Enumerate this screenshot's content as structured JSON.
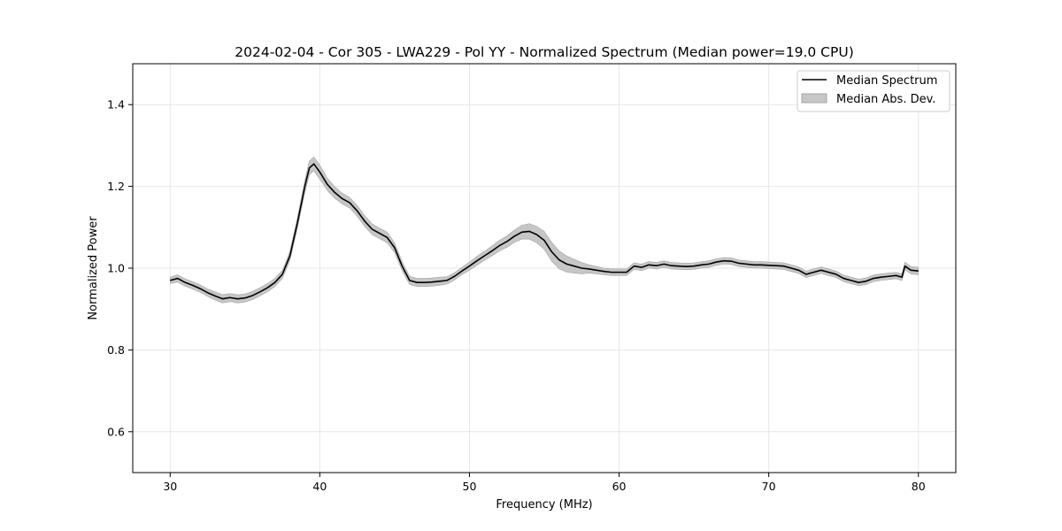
{
  "chart_data": {
    "type": "line",
    "title": "2024-02-04 - Cor 305 - LWA229 - Pol YY - Normalized Spectrum (Median power=19.0 CPU)",
    "xlabel": "Frequency (MHz)",
    "ylabel": "Normalized Power",
    "xlim": [
      27.5,
      82.5
    ],
    "ylim": [
      0.5,
      1.5
    ],
    "x_ticks": [
      30,
      40,
      50,
      60,
      70,
      80
    ],
    "y_ticks": [
      0.6,
      0.8,
      1.0,
      1.2,
      1.4
    ],
    "x_tick_labels": [
      "30",
      "40",
      "50",
      "60",
      "70",
      "80"
    ],
    "y_tick_labels": [
      "0.6",
      "0.8",
      "1.0",
      "1.2",
      "1.4"
    ],
    "grid": true,
    "legend_position": "top-right",
    "colors": {
      "line": "#000000",
      "band": "#c6c6c6",
      "band_edge": "#a5a5a5",
      "grid": "#e6e6e6"
    },
    "series": [
      {
        "name": "Median Spectrum",
        "kind": "line",
        "x": [
          30.0,
          30.5,
          31.0,
          31.5,
          32.0,
          32.5,
          33.0,
          33.5,
          34.0,
          34.5,
          35.0,
          35.5,
          36.0,
          36.5,
          37.0,
          37.5,
          38.0,
          38.5,
          39.0,
          39.3,
          39.6,
          40.0,
          40.5,
          41.0,
          41.5,
          42.0,
          42.5,
          43.0,
          43.5,
          44.0,
          44.5,
          45.0,
          45.5,
          46.0,
          46.5,
          47.0,
          47.5,
          48.0,
          48.5,
          49.0,
          49.5,
          50.0,
          50.5,
          51.0,
          51.5,
          52.0,
          52.5,
          53.0,
          53.5,
          54.0,
          54.5,
          55.0,
          55.5,
          56.0,
          56.5,
          57.0,
          57.5,
          58.0,
          58.5,
          59.0,
          59.5,
          60.0,
          60.5,
          61.0,
          61.5,
          62.0,
          62.5,
          63.0,
          63.5,
          64.0,
          64.5,
          65.0,
          65.5,
          66.0,
          66.5,
          67.0,
          67.5,
          68.0,
          68.5,
          69.0,
          69.5,
          70.0,
          70.5,
          71.0,
          71.5,
          72.0,
          72.5,
          73.0,
          73.5,
          74.0,
          74.5,
          75.0,
          75.5,
          76.0,
          76.5,
          77.0,
          77.5,
          78.0,
          78.5,
          78.9,
          79.1,
          79.5,
          80.0
        ],
        "values": [
          0.97,
          0.975,
          0.965,
          0.958,
          0.95,
          0.94,
          0.932,
          0.925,
          0.928,
          0.925,
          0.927,
          0.933,
          0.942,
          0.952,
          0.965,
          0.985,
          1.03,
          1.11,
          1.2,
          1.245,
          1.255,
          1.235,
          1.205,
          1.185,
          1.17,
          1.16,
          1.14,
          1.115,
          1.095,
          1.085,
          1.075,
          1.05,
          1.005,
          0.97,
          0.965,
          0.965,
          0.966,
          0.968,
          0.97,
          0.98,
          0.993,
          1.005,
          1.018,
          1.03,
          1.042,
          1.055,
          1.065,
          1.078,
          1.088,
          1.09,
          1.082,
          1.068,
          1.04,
          1.02,
          1.01,
          1.005,
          1.0,
          0.998,
          0.995,
          0.992,
          0.99,
          0.99,
          0.99,
          1.005,
          1.002,
          1.008,
          1.006,
          1.01,
          1.006,
          1.005,
          1.004,
          1.005,
          1.008,
          1.01,
          1.015,
          1.018,
          1.017,
          1.012,
          1.01,
          1.008,
          1.008,
          1.007,
          1.006,
          1.005,
          1.0,
          0.995,
          0.985,
          0.99,
          0.995,
          0.99,
          0.985,
          0.975,
          0.97,
          0.965,
          0.968,
          0.975,
          0.978,
          0.98,
          0.982,
          0.978,
          1.005,
          0.995,
          0.993
        ]
      },
      {
        "name": "Median Abs. Dev.",
        "kind": "band",
        "lower": [
          0.962,
          0.966,
          0.956,
          0.949,
          0.941,
          0.931,
          0.922,
          0.915,
          0.918,
          0.915,
          0.917,
          0.923,
          0.932,
          0.942,
          0.955,
          0.975,
          1.019,
          1.097,
          1.185,
          1.228,
          1.238,
          1.218,
          1.19,
          1.171,
          1.157,
          1.147,
          1.127,
          1.102,
          1.082,
          1.072,
          1.062,
          1.038,
          0.994,
          0.96,
          0.955,
          0.955,
          0.956,
          0.958,
          0.961,
          0.971,
          0.984,
          0.995,
          1.007,
          1.019,
          1.03,
          1.042,
          1.051,
          1.063,
          1.071,
          1.071,
          1.062,
          1.046,
          1.017,
          0.998,
          0.99,
          0.988,
          0.986,
          0.988,
          0.986,
          0.984,
          0.982,
          0.982,
          0.982,
          0.997,
          0.994,
          1.0,
          0.998,
          1.002,
          0.998,
          0.997,
          0.996,
          0.997,
          1.0,
          1.002,
          1.007,
          1.01,
          1.009,
          1.004,
          1.002,
          1.0,
          1.0,
          0.999,
          0.998,
          0.997,
          0.992,
          0.987,
          0.977,
          0.982,
          0.987,
          0.982,
          0.977,
          0.967,
          0.962,
          0.957,
          0.96,
          0.967,
          0.97,
          0.972,
          0.974,
          0.97,
          0.996,
          0.986,
          0.984
        ],
        "upper": [
          0.978,
          0.984,
          0.974,
          0.967,
          0.959,
          0.949,
          0.942,
          0.935,
          0.938,
          0.935,
          0.937,
          0.943,
          0.952,
          0.962,
          0.975,
          0.995,
          1.041,
          1.123,
          1.215,
          1.262,
          1.272,
          1.252,
          1.22,
          1.199,
          1.183,
          1.173,
          1.153,
          1.128,
          1.108,
          1.098,
          1.088,
          1.062,
          1.016,
          0.98,
          0.975,
          0.975,
          0.976,
          0.978,
          0.979,
          0.989,
          1.002,
          1.015,
          1.029,
          1.041,
          1.054,
          1.068,
          1.079,
          1.093,
          1.105,
          1.109,
          1.102,
          1.09,
          1.063,
          1.042,
          1.03,
          1.022,
          1.014,
          1.008,
          1.004,
          1.0,
          0.998,
          0.998,
          0.998,
          1.013,
          1.01,
          1.016,
          1.014,
          1.018,
          1.014,
          1.013,
          1.012,
          1.013,
          1.016,
          1.018,
          1.023,
          1.026,
          1.025,
          1.02,
          1.018,
          1.016,
          1.016,
          1.015,
          1.014,
          1.013,
          1.008,
          1.003,
          0.993,
          0.998,
          1.003,
          0.998,
          0.993,
          0.983,
          0.978,
          0.973,
          0.976,
          0.983,
          0.986,
          0.988,
          0.99,
          0.986,
          1.014,
          1.004,
          1.002
        ]
      }
    ]
  }
}
